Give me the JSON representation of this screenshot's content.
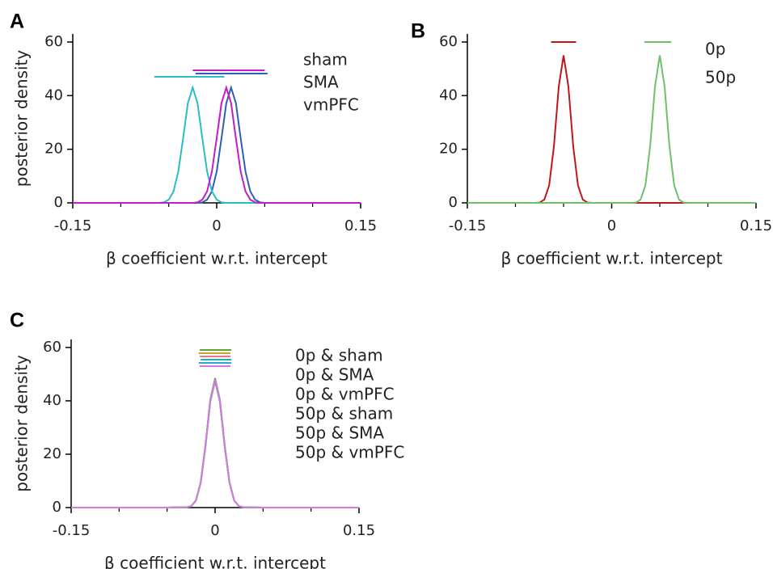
{
  "chart_data": [
    {
      "type": "line",
      "panel": "A",
      "xlabel": "β coefficient w.r.t. intercept",
      "ylabel": "posterior density",
      "x": [
        -0.15,
        -0.1,
        -0.08,
        -0.07,
        -0.06,
        -0.055,
        -0.05,
        -0.045,
        -0.04,
        -0.035,
        -0.03,
        -0.025,
        -0.02,
        -0.015,
        -0.01,
        -0.005,
        0,
        0.005,
        0.01,
        0.015,
        0.02,
        0.025,
        0.03,
        0.035,
        0.04,
        0.045,
        0.05,
        0.06,
        0.07,
        0.1,
        0.15
      ],
      "series": [
        {
          "name": "sham",
          "color": "#2b5fb8",
          "interval": [
            -0.022,
            0.053
          ],
          "values": [
            0,
            0,
            0,
            0,
            0,
            0,
            0,
            0,
            0,
            0,
            0,
            0,
            0,
            0.2,
            1.2,
            4.3,
            11.7,
            24.1,
            37.2,
            43,
            37.2,
            24.1,
            11.7,
            4.3,
            1.2,
            0.2,
            0,
            0,
            0,
            0,
            0
          ]
        },
        {
          "name": "SMA",
          "color": "#2bbdc4",
          "interval": [
            -0.065,
            0.008
          ],
          "values": [
            0,
            0,
            0,
            0,
            0,
            0.2,
            1.2,
            4.3,
            11.7,
            24.1,
            37.2,
            43,
            37.2,
            24.1,
            11.7,
            4.3,
            1.2,
            0.2,
            0,
            0,
            0,
            0,
            0,
            0,
            0,
            0,
            0,
            0,
            0,
            0,
            0
          ]
        },
        {
          "name": "vmPFC",
          "color": "#c51cc5",
          "interval": [
            -0.025,
            0.05
          ],
          "values": [
            0,
            0,
            0,
            0,
            0,
            0,
            0,
            0,
            0,
            0,
            0,
            0,
            0.2,
            1.2,
            4.3,
            11.7,
            24.1,
            37.2,
            43,
            37.2,
            24.1,
            11.7,
            4.3,
            1.2,
            0.2,
            0,
            0,
            0,
            0,
            0,
            0
          ]
        }
      ],
      "xlim": [
        -0.15,
        0.15
      ],
      "ylim": [
        0,
        63
      ],
      "xticks": [
        -0.15,
        0,
        0.15
      ],
      "xminor": [
        -0.1,
        -0.05,
        0.05,
        0.1
      ],
      "yticks": [
        0,
        20,
        40,
        60
      ]
    },
    {
      "type": "line",
      "panel": "B",
      "xlabel": "β coefficient w.r.t. intercept",
      "x": [
        -0.15,
        -0.1,
        -0.08,
        -0.075,
        -0.07,
        -0.065,
        -0.06,
        -0.055,
        -0.05,
        -0.045,
        -0.04,
        -0.035,
        -0.03,
        -0.025,
        -0.02,
        0,
        0.02,
        0.025,
        0.03,
        0.035,
        0.04,
        0.045,
        0.05,
        0.055,
        0.06,
        0.065,
        0.07,
        0.075,
        0.08,
        0.1,
        0.15
      ],
      "series": [
        {
          "name": "0p",
          "color": "#c0161b",
          "interval": [
            -0.063,
            -0.037
          ],
          "values": [
            0,
            0,
            0,
            0.1,
            1.2,
            6.5,
            21.2,
            43.4,
            55,
            43.4,
            21.2,
            6.5,
            1.2,
            0.1,
            0,
            0,
            0,
            0,
            0,
            0,
            0,
            0,
            0,
            0,
            0,
            0,
            0,
            0,
            0,
            0,
            0
          ]
        },
        {
          "name": "50p",
          "color": "#6cc16a",
          "interval": [
            0.034,
            0.062
          ],
          "values": [
            0,
            0,
            0,
            0,
            0,
            0,
            0,
            0,
            0,
            0,
            0,
            0,
            0,
            0,
            0,
            0,
            0,
            0.1,
            1.2,
            6.5,
            21.2,
            43.4,
            55,
            43.4,
            21.2,
            6.5,
            1.2,
            0.1,
            0,
            0,
            0
          ]
        }
      ],
      "xlim": [
        -0.15,
        0.15
      ],
      "ylim": [
        0,
        63
      ],
      "xticks": [
        -0.15,
        0,
        0.15
      ],
      "xminor": [
        -0.1,
        -0.05,
        0.05,
        0.1
      ],
      "yticks": [
        0,
        20,
        40,
        60
      ]
    },
    {
      "type": "line",
      "panel": "C",
      "xlabel": "β coefficient w.r.t. intercept",
      "ylabel": "posterior density",
      "x": [
        -0.15,
        -0.1,
        -0.05,
        -0.03,
        -0.025,
        -0.02,
        -0.015,
        -0.01,
        -0.005,
        0,
        0.005,
        0.01,
        0.015,
        0.02,
        0.025,
        0.03,
        0.05,
        0.1,
        0.15
      ],
      "series": [
        {
          "name": "0p & sham",
          "color": "#e8749a",
          "interval": [
            -0.016,
            0.016
          ],
          "values": [
            0,
            0,
            0,
            0.1,
            0.5,
            2.6,
            9.4,
            23.2,
            40.1,
            48,
            40.1,
            23.2,
            9.4,
            2.6,
            0.5,
            0.1,
            0,
            0,
            0
          ]
        },
        {
          "name": "0p & SMA",
          "color": "#c9a227",
          "interval": [
            -0.017,
            0.016
          ],
          "values": [
            0,
            0,
            0,
            0.1,
            0.5,
            2.6,
            9.3,
            23,
            39.7,
            47.5,
            39.7,
            23,
            9.3,
            2.6,
            0.5,
            0.1,
            0,
            0,
            0
          ]
        },
        {
          "name": "0p & vmPFC",
          "color": "#5aaa2a",
          "interval": [
            -0.016,
            0.017
          ],
          "values": [
            0,
            0,
            0,
            0.1,
            0.5,
            2.6,
            9.5,
            23.4,
            40.5,
            48.5,
            40.5,
            23.4,
            9.5,
            2.6,
            0.5,
            0.1,
            0,
            0,
            0
          ]
        },
        {
          "name": "50p & sham",
          "color": "#1fb5a0",
          "interval": [
            -0.015,
            0.017
          ],
          "values": [
            0,
            0,
            0,
            0.1,
            0.5,
            2.6,
            9.4,
            23.2,
            40.1,
            48,
            40.1,
            23.2,
            9.4,
            2.6,
            0.5,
            0.1,
            0,
            0,
            0
          ]
        },
        {
          "name": "50p & SMA",
          "color": "#29a8e0",
          "interval": [
            -0.017,
            0.017
          ],
          "values": [
            0,
            0,
            0,
            0.1,
            0.5,
            2.6,
            9.3,
            23,
            39.7,
            47.5,
            39.7,
            23,
            9.3,
            2.6,
            0.5,
            0.1,
            0,
            0,
            0
          ]
        },
        {
          "name": "50p & vmPFC",
          "color": "#d97ad9",
          "interval": [
            -0.016,
            0.016
          ],
          "values": [
            0,
            0,
            0,
            0.1,
            0.5,
            2.6,
            9.4,
            23.2,
            40.1,
            48,
            40.1,
            23.2,
            9.4,
            2.6,
            0.5,
            0.1,
            0,
            0,
            0
          ]
        }
      ],
      "xlim": [
        -0.15,
        0.15
      ],
      "ylim": [
        0,
        63
      ],
      "xticks": [
        -0.15,
        0,
        0.15
      ],
      "xminor": [
        -0.1,
        -0.05,
        0.05,
        0.1
      ],
      "yticks": [
        0,
        20,
        40,
        60
      ]
    }
  ]
}
